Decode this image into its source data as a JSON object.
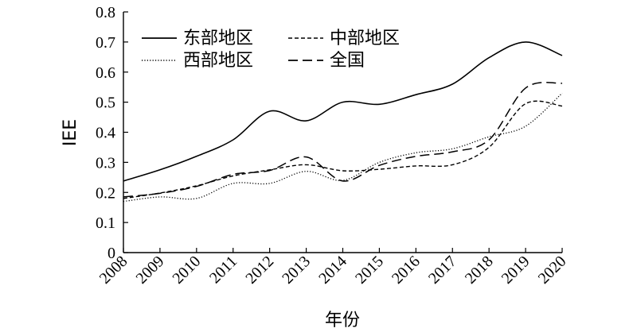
{
  "chart_data": {
    "type": "line",
    "xlabel": "年份",
    "ylabel": "IEE",
    "ylim": [
      0,
      0.8
    ],
    "yticks": [
      "0",
      "0.1",
      "0.2",
      "0.3",
      "0.4",
      "0.5",
      "0.6",
      "0.7",
      "0.8"
    ],
    "x": [
      "2008",
      "2009",
      "2010",
      "2011",
      "2012",
      "2013",
      "2014",
      "2015",
      "2016",
      "2017",
      "2018",
      "2019",
      "2020"
    ],
    "legend_position": "top-left",
    "series": [
      {
        "name": "东部地区",
        "style": "solid",
        "color": "#000000",
        "values": [
          0.238,
          0.275,
          0.32,
          0.375,
          0.47,
          0.438,
          0.5,
          0.493,
          0.525,
          0.56,
          0.648,
          0.7,
          0.655
        ]
      },
      {
        "name": "中部地区",
        "style": "dashed",
        "color": "#000000",
        "values": [
          0.18,
          0.198,
          0.222,
          0.255,
          0.275,
          0.292,
          0.272,
          0.277,
          0.288,
          0.292,
          0.35,
          0.495,
          0.487
        ]
      },
      {
        "name": "西部地区",
        "style": "dotted",
        "color": "#000000",
        "values": [
          0.17,
          0.185,
          0.18,
          0.23,
          0.23,
          0.27,
          0.24,
          0.3,
          0.332,
          0.345,
          0.385,
          0.42,
          0.53
        ]
      },
      {
        "name": "全国",
        "style": "longdash",
        "color": "#000000",
        "values": [
          0.185,
          0.197,
          0.22,
          0.26,
          0.273,
          0.318,
          0.238,
          0.29,
          0.32,
          0.335,
          0.375,
          0.547,
          0.563
        ]
      }
    ]
  }
}
